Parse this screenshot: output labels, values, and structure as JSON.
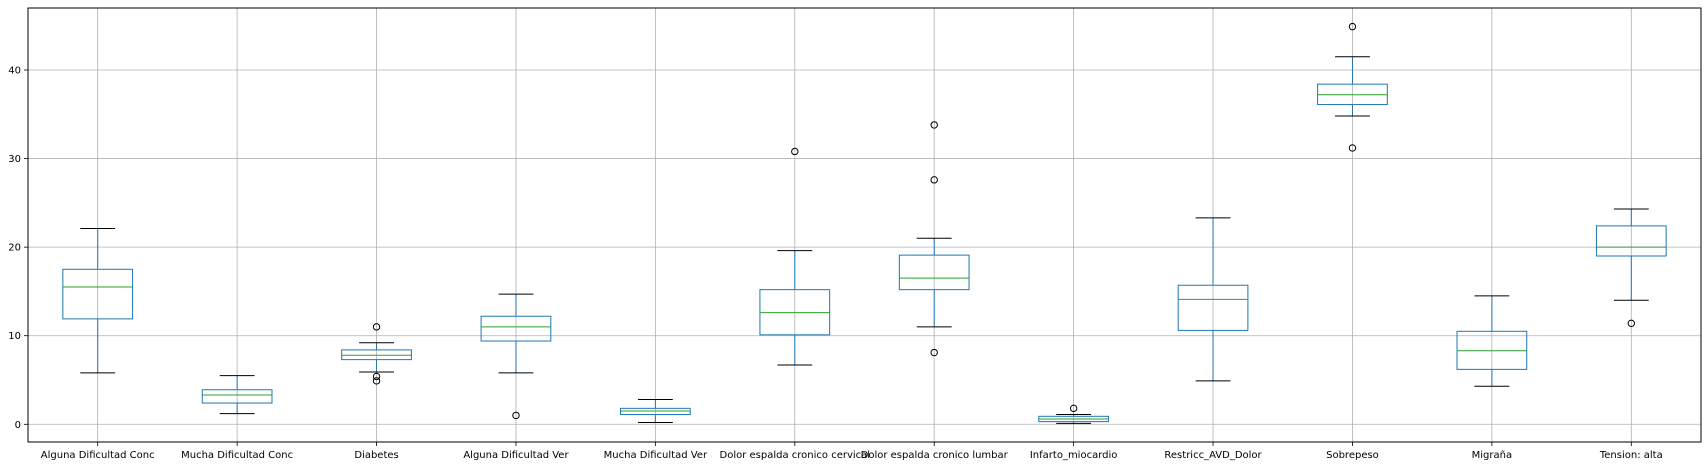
{
  "chart_data": {
    "type": "boxplot",
    "grid": true,
    "ylim": [
      -2,
      47
    ],
    "yticks": [
      0,
      10,
      20,
      30,
      40
    ],
    "categories": [
      "Alguna Dificultad Conc",
      "Mucha Dificultad Conc",
      "Diabetes",
      "Alguna Dificultad Ver",
      "Mucha Dificultad Ver",
      "Dolor espalda cronico cervical",
      "Dolor espalda cronico lumbar",
      "Infarto_miocardio",
      "Restricc_AVD_Dolor",
      "Sobrepeso",
      "Migraña",
      "Tension: alta"
    ],
    "boxes": [
      {
        "whislo": 5.8,
        "q1": 11.9,
        "med": 15.5,
        "q3": 17.5,
        "whishi": 22.1,
        "fliers": []
      },
      {
        "whislo": 1.2,
        "q1": 2.4,
        "med": 3.3,
        "q3": 3.9,
        "whishi": 5.5,
        "fliers": []
      },
      {
        "whislo": 5.9,
        "q1": 7.3,
        "med": 7.8,
        "q3": 8.4,
        "whishi": 9.2,
        "fliers": [
          11.0,
          5.4,
          4.9
        ]
      },
      {
        "whislo": 5.8,
        "q1": 9.4,
        "med": 11.0,
        "q3": 12.2,
        "whishi": 14.7,
        "fliers": [
          1.0
        ]
      },
      {
        "whislo": 0.2,
        "q1": 1.1,
        "med": 1.5,
        "q3": 1.8,
        "whishi": 2.8,
        "fliers": []
      },
      {
        "whislo": 6.7,
        "q1": 10.1,
        "med": 12.6,
        "q3": 15.2,
        "whishi": 19.6,
        "fliers": [
          30.8
        ]
      },
      {
        "whislo": 11.0,
        "q1": 15.2,
        "med": 16.5,
        "q3": 19.1,
        "whishi": 21.0,
        "fliers": [
          33.8,
          27.6,
          8.1
        ]
      },
      {
        "whislo": 0.1,
        "q1": 0.3,
        "med": 0.6,
        "q3": 0.9,
        "whishi": 1.1,
        "fliers": [
          1.8
        ]
      },
      {
        "whislo": 4.9,
        "q1": 10.6,
        "med": 14.1,
        "q3": 15.7,
        "whishi": 23.3,
        "fliers": []
      },
      {
        "whislo": 34.8,
        "q1": 36.1,
        "med": 37.2,
        "q3": 38.4,
        "whishi": 41.5,
        "fliers": [
          44.9,
          31.2
        ]
      },
      {
        "whislo": 4.3,
        "q1": 6.2,
        "med": 8.3,
        "q3": 10.5,
        "whishi": 14.5,
        "fliers": []
      },
      {
        "whislo": 14.0,
        "q1": 19.0,
        "med": 20.0,
        "q3": 22.4,
        "whishi": 24.3,
        "fliers": [
          11.4
        ]
      }
    ]
  }
}
